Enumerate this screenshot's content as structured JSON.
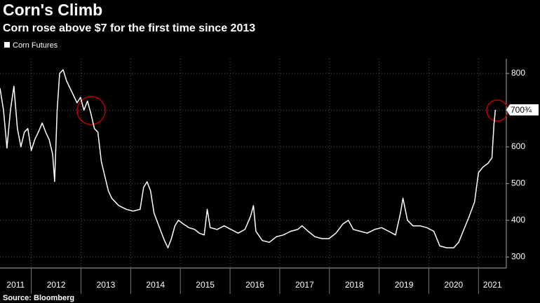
{
  "chart_data": {
    "type": "line",
    "title": "Corn's Climb",
    "subtitle": "Corn rose above $7 for the first time since 2013",
    "source": "Source: Bloomberg",
    "series": [
      {
        "name": "Corn Futures",
        "color": "#ffffff",
        "x": [
          2011.37,
          2011.44,
          2011.51,
          2011.58,
          2011.65,
          2011.72,
          2011.79,
          2011.86,
          2011.93,
          2012.0,
          2012.07,
          2012.14,
          2012.22,
          2012.29,
          2012.36,
          2012.43,
          2012.47,
          2012.52,
          2012.57,
          2012.64,
          2012.71,
          2012.78,
          2012.85,
          2012.92,
          2012.99,
          2013.06,
          2013.13,
          2013.2,
          2013.27,
          2013.34,
          2013.41,
          2013.48,
          2013.55,
          2013.62,
          2013.76,
          2013.91,
          2014.05,
          2014.19,
          2014.26,
          2014.33,
          2014.4,
          2014.47,
          2014.58,
          2014.68,
          2014.75,
          2014.82,
          2014.89,
          2014.96,
          2015.06,
          2015.17,
          2015.29,
          2015.38,
          2015.48,
          2015.54,
          2015.6,
          2015.74,
          2015.88,
          2016.02,
          2016.16,
          2016.3,
          2016.41,
          2016.47,
          2016.52,
          2016.65,
          2016.79,
          2016.93,
          2017.07,
          2017.22,
          2017.36,
          2017.45,
          2017.57,
          2017.71,
          2017.85,
          2017.99,
          2018.13,
          2018.27,
          2018.38,
          2018.48,
          2018.62,
          2018.76,
          2018.91,
          2019.05,
          2019.19,
          2019.33,
          2019.43,
          2019.48,
          2019.57,
          2019.68,
          2019.82,
          2019.96,
          2020.1,
          2020.22,
          2020.36,
          2020.5,
          2020.6,
          2020.69,
          2020.81,
          2020.92,
          2021.0,
          2021.09,
          2021.19,
          2021.27,
          2021.31,
          2021.34
        ],
        "values": [
          760,
          700,
          597,
          700,
          765,
          650,
          600,
          640,
          650,
          590,
          620,
          640,
          665,
          640,
          620,
          580,
          506,
          700,
          800,
          810,
          780,
          760,
          740,
          720,
          735,
          700,
          725,
          690,
          650,
          640,
          560,
          520,
          480,
          460,
          440,
          430,
          425,
          430,
          490,
          505,
          480,
          420,
          380,
          345,
          325,
          350,
          385,
          400,
          390,
          380,
          375,
          365,
          360,
          430,
          380,
          375,
          385,
          375,
          365,
          375,
          410,
          440,
          370,
          345,
          340,
          355,
          360,
          370,
          375,
          385,
          370,
          355,
          350,
          350,
          365,
          390,
          400,
          375,
          370,
          365,
          375,
          380,
          370,
          360,
          420,
          460,
          400,
          385,
          385,
          380,
          370,
          330,
          325,
          325,
          340,
          370,
          410,
          450,
          530,
          545,
          555,
          570,
          660,
          700.75
        ]
      }
    ],
    "current": {
      "value": 700.75,
      "label": "700¾"
    },
    "xlim": [
      2011.37,
      2021.56
    ],
    "xticks": [
      2011,
      2012,
      2013,
      2014,
      2015,
      2016,
      2017,
      2018,
      2019,
      2020,
      2021
    ],
    "ylim": [
      270,
      840
    ],
    "yticks": [
      300,
      400,
      500,
      600,
      700,
      800
    ],
    "grid": true
  }
}
